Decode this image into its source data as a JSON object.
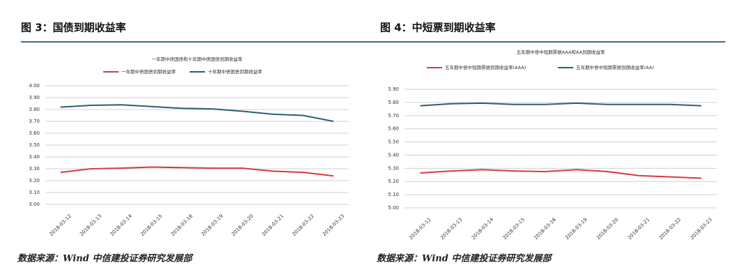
{
  "chart_data": [
    {
      "type": "line",
      "heading": "图 3：国债到期收益率",
      "title": "一年期中债国债和十年期中债国债到期收益率",
      "source": "数据来源：Wind 中信建投证券研究发展部",
      "x": [
        "2018-03-12",
        "2018-03-13",
        "2018-03-14",
        "2018-03-15",
        "2018-03-16",
        "2018-03-19",
        "2018-03-20",
        "2018-03-21",
        "2018-03-22",
        "2018-03-23"
      ],
      "series": [
        {
          "name": "一年期中债国债到期收益率",
          "color": "#d63a40",
          "values": [
            3.27,
            3.3,
            3.305,
            3.315,
            3.31,
            3.305,
            3.305,
            3.28,
            3.27,
            3.24
          ]
        },
        {
          "name": "十年期中债国债到期收益率",
          "color": "#2d5e72",
          "values": [
            3.82,
            3.835,
            3.84,
            3.825,
            3.81,
            3.805,
            3.785,
            3.76,
            3.75,
            3.7
          ]
        }
      ],
      "ylim": [
        3.0,
        4.0
      ],
      "yticks": [
        {
          "value": 3.0,
          "label": "3.00"
        },
        {
          "value": 3.1,
          "label": "3.10"
        },
        {
          "value": 3.2,
          "label": "3.20"
        },
        {
          "value": 3.3,
          "label": "3.30"
        },
        {
          "value": 3.4,
          "label": "3.40"
        },
        {
          "value": 3.5,
          "label": "3.50"
        },
        {
          "value": 3.6,
          "label": "3.60"
        },
        {
          "value": 3.7,
          "label": "3.70"
        },
        {
          "value": 3.8,
          "label": "3.80"
        },
        {
          "value": 3.9,
          "label": "3.90"
        },
        {
          "value": 4.0,
          "label": "4.00"
        }
      ],
      "grid": true
    },
    {
      "type": "line",
      "heading": "图 4：中短票到期收益率",
      "title": "五年期中债中短期票据AAA和AA到期收益率",
      "source": "数据来源：Wind 中信建投证券研究发展部",
      "x": [
        "2018-03-12",
        "2018-03-13",
        "2018-03-14",
        "2018-03-15",
        "2018-03-16",
        "2018-03-19",
        "2018-03-20",
        "2018-03-21",
        "2018-03-22",
        "2018-03-23"
      ],
      "series": [
        {
          "name": "五年期中债中短期票据到期收益率(AAA)",
          "color": "#d63a40",
          "values": [
            5.265,
            5.28,
            5.29,
            5.28,
            5.275,
            5.29,
            5.275,
            5.245,
            5.235,
            5.225
          ]
        },
        {
          "name": "五年期中债中短期票据到期收益率(AA)",
          "color": "#2d5e72",
          "values": [
            5.775,
            5.79,
            5.795,
            5.785,
            5.785,
            5.795,
            5.785,
            5.785,
            5.785,
            5.775
          ]
        }
      ],
      "ylim": [
        5.0,
        5.9
      ],
      "yticks": [
        {
          "value": 5.0,
          "label": "5.00"
        },
        {
          "value": 5.1,
          "label": "5.10"
        },
        {
          "value": 5.2,
          "label": "5.20"
        },
        {
          "value": 5.3,
          "label": "5.30"
        },
        {
          "value": 5.4,
          "label": "5.40"
        },
        {
          "value": 5.5,
          "label": "5.50"
        },
        {
          "value": 5.6,
          "label": "5.60"
        },
        {
          "value": 5.7,
          "label": "5.70"
        },
        {
          "value": 5.8,
          "label": "5.80"
        },
        {
          "value": 5.9,
          "label": "5.90"
        }
      ],
      "grid": true
    }
  ]
}
